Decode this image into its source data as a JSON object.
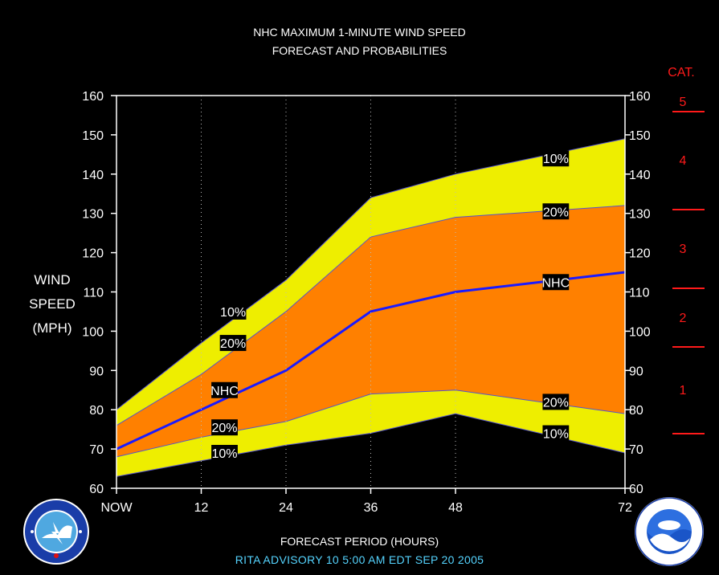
{
  "title_line1": "NHC MAXIMUM 1-MINUTE WIND SPEED",
  "title_line2": "FORECAST AND PROBABILITIES",
  "y_label": [
    "WIND",
    "SPEED",
    "(MPH)"
  ],
  "x_label": "FORECAST PERIOD (HOURS)",
  "credit": "RITA   ADVISORY  10 5:00  AM  EDT  SEP  20  2005",
  "category_header": "CAT.",
  "categories": [
    {
      "label": "1",
      "from": 74,
      "to": 95
    },
    {
      "label": "2",
      "from": 96,
      "to": 110
    },
    {
      "label": "3",
      "from": 111,
      "to": 130
    },
    {
      "label": "4",
      "from": 131,
      "to": 155
    },
    {
      "label": "5",
      "from": 156,
      "to": 160
    }
  ],
  "category_thresholds": [
    74,
    96,
    111,
    131,
    156
  ],
  "colors": {
    "outer_band": "#eeee00",
    "inner_band": "#ff8000",
    "nhc_line": "#1a1aff",
    "category": "#ff1a1a",
    "credit": "#55d4ff"
  },
  "chart_data": {
    "type": "area",
    "x": [
      0,
      12,
      24,
      36,
      48,
      72
    ],
    "x_tick_labels": [
      "NOW",
      "12",
      "24",
      "36",
      "48",
      "72"
    ],
    "ylim": [
      60,
      160
    ],
    "y_ticks": [
      60,
      70,
      80,
      90,
      100,
      110,
      120,
      130,
      140,
      150,
      160
    ],
    "grid": "vertical dotted at forecast hours",
    "series": [
      {
        "name": "10%",
        "values": [
          63,
          67,
          71,
          74,
          79,
          69
        ]
      },
      {
        "name": "20%",
        "values": [
          68,
          73,
          77,
          84,
          85,
          79
        ]
      },
      {
        "name": "NHC",
        "values": [
          70,
          80,
          90,
          105,
          110,
          115
        ]
      },
      {
        "name": "20%",
        "values": [
          76,
          89,
          105,
          124,
          129,
          132
        ]
      },
      {
        "name": "10%",
        "values": [
          80,
          97,
          113,
          134,
          140,
          149
        ]
      }
    ],
    "annotations": [
      {
        "text": "10%",
        "x": 16.5,
        "y": 105
      },
      {
        "text": "20%",
        "x": 16.5,
        "y": 97
      },
      {
        "text": "NHC",
        "x": 15.3,
        "y": 85
      },
      {
        "text": "20%",
        "x": 15.3,
        "y": 75.5
      },
      {
        "text": "10%",
        "x": 15.3,
        "y": 69
      },
      {
        "text": "10%",
        "x": 62.2,
        "y": 144
      },
      {
        "text": "20%",
        "x": 62.2,
        "y": 130.5
      },
      {
        "text": "NHC",
        "x": 62.2,
        "y": 112.5
      },
      {
        "text": "20%",
        "x": 62.2,
        "y": 82
      },
      {
        "text": "10%",
        "x": 62.2,
        "y": 74
      }
    ]
  }
}
